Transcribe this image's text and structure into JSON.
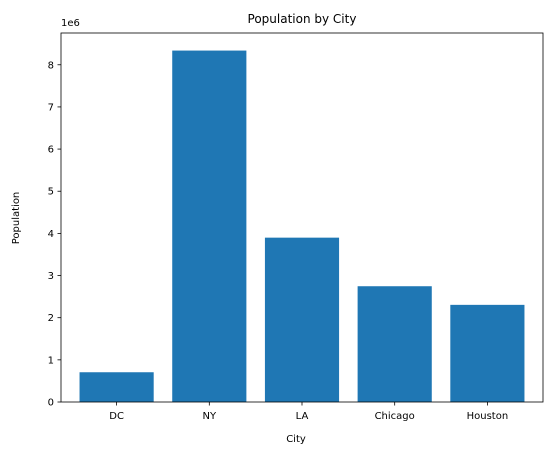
{
  "chart_data": {
    "type": "bar",
    "title": "Population by City",
    "xlabel": "City",
    "ylabel": "Population",
    "y_offset_label": "1e6",
    "categories": [
      "DC",
      "NY",
      "LA",
      "Chicago",
      "Houston"
    ],
    "values": [
      705749,
      8336817,
      3898747,
      2746388,
      2304580
    ],
    "ylim": [
      0,
      8753657.85
    ],
    "yticks": [
      0,
      1000000,
      2000000,
      3000000,
      4000000,
      5000000,
      6000000,
      7000000,
      8000000
    ],
    "ytick_labels": [
      "0",
      "1",
      "2",
      "3",
      "4",
      "5",
      "6",
      "7",
      "8"
    ],
    "bar_color": "#1f77b4",
    "grid": false,
    "legend": "none"
  }
}
